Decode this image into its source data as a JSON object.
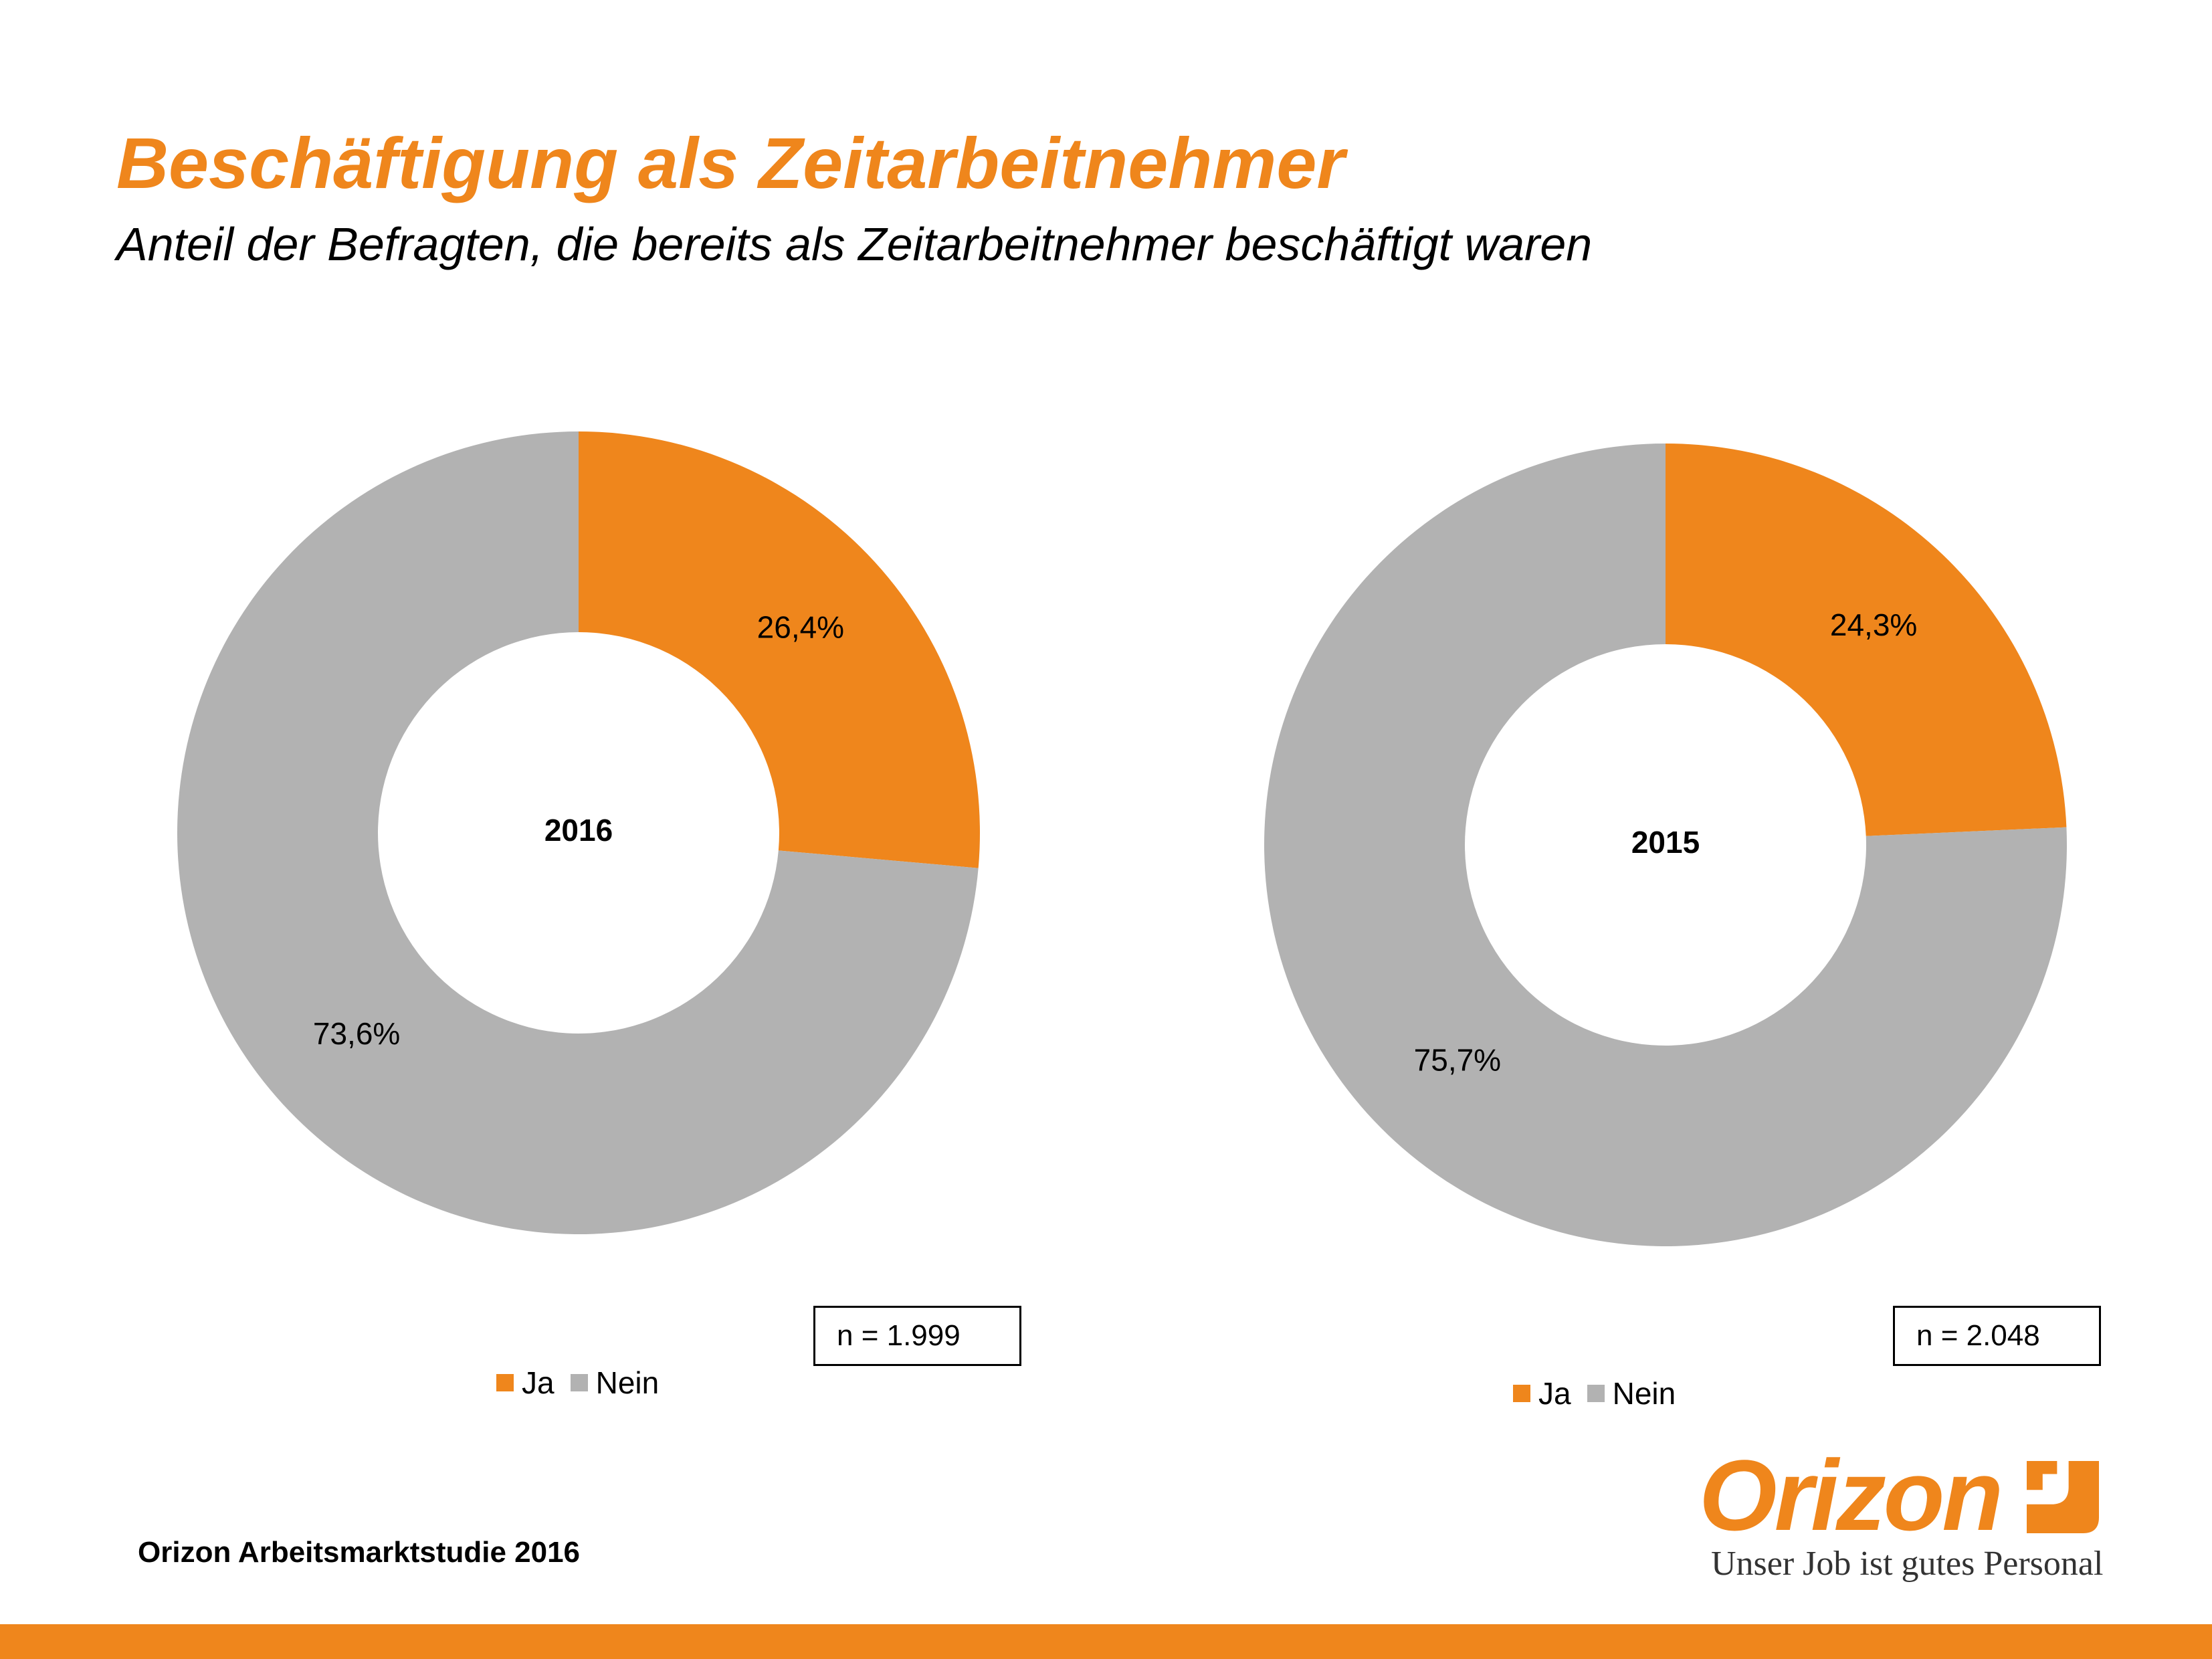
{
  "title": "Beschäftigung als Zeitarbeitnehmer",
  "subtitle": "Anteil der Befragten, die bereits als Zeitarbeitnehmer beschäftigt waren",
  "colors": {
    "accent": "#ef861c",
    "nein": "#b2b2b2",
    "ja": "#ef861c"
  },
  "chart_data": [
    {
      "type": "pie",
      "center_label": "2016",
      "sample_size": "n = 1.999",
      "categories": [
        "Ja",
        "Nein"
      ],
      "values": [
        26.4,
        73.6
      ],
      "value_labels": [
        "26,4%",
        "73,6%"
      ],
      "legend": [
        "Ja",
        "Nein"
      ],
      "legend_position": "bottom"
    },
    {
      "type": "pie",
      "center_label": "2015",
      "sample_size": "n = 2.048",
      "categories": [
        "Ja",
        "Nein"
      ],
      "values": [
        24.3,
        75.7
      ],
      "value_labels": [
        "24,3%",
        "75,7%"
      ],
      "legend": [
        "Ja",
        "Nein"
      ],
      "legend_position": "bottom"
    }
  ],
  "footer": {
    "source": "Orizon Arbeitsmarktstudie 2016"
  },
  "logo": {
    "wordmark": "Orizon",
    "tagline": "Unser Job ist gutes Personal",
    "mark": "orizon-mark-icon"
  }
}
